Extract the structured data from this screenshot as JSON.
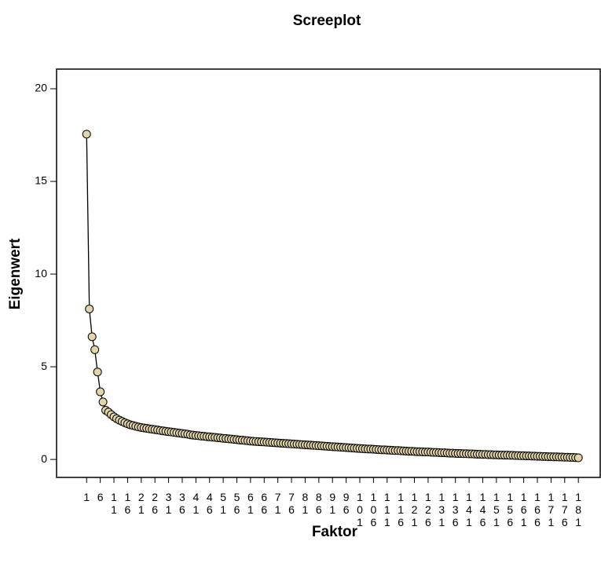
{
  "chart_data": {
    "type": "line",
    "title": "Screeplot",
    "x_label": "Faktor",
    "y_label": "Eigenwert",
    "x": [
      1,
      2,
      3,
      4,
      5,
      6,
      7,
      8,
      9,
      10,
      11,
      12,
      13,
      14,
      15,
      16,
      17,
      18,
      19,
      20,
      21,
      22,
      23,
      24,
      25,
      26,
      27,
      28,
      29,
      30,
      31,
      32,
      33,
      34,
      35,
      36,
      37,
      38,
      39,
      40,
      41,
      42,
      43,
      44,
      45,
      46,
      47,
      48,
      49,
      50,
      51,
      52,
      53,
      54,
      55,
      56,
      57,
      58,
      59,
      60,
      61,
      62,
      63,
      64,
      65,
      66,
      67,
      68,
      69,
      70,
      71,
      72,
      73,
      74,
      75,
      76,
      77,
      78,
      79,
      80,
      81,
      82,
      83,
      84,
      85,
      86,
      87,
      88,
      89,
      90,
      91,
      92,
      93,
      94,
      95,
      96,
      97,
      98,
      99,
      100,
      101,
      102,
      103,
      104,
      105,
      106,
      107,
      108,
      109,
      110,
      111,
      112,
      113,
      114,
      115,
      116,
      117,
      118,
      119,
      120,
      121,
      122,
      123,
      124,
      125,
      126,
      127,
      128,
      129,
      130,
      131,
      132,
      133,
      134,
      135,
      136,
      137,
      138,
      139,
      140,
      141,
      142,
      143,
      144,
      145,
      146,
      147,
      148,
      149,
      150,
      151,
      152,
      153,
      154,
      155,
      156,
      157,
      158,
      159,
      160,
      161,
      162,
      163,
      164,
      165,
      166,
      167,
      168,
      169,
      170,
      171,
      172,
      173,
      174,
      175,
      176,
      177,
      178,
      179,
      180,
      181
    ],
    "series": [
      {
        "name": "Eigenwert",
        "color": "#000000",
        "marker_color": "#e2d6a6",
        "values": [
          17.55,
          8.12,
          6.62,
          5.92,
          4.72,
          3.65,
          3.1,
          2.65,
          2.55,
          2.42,
          2.3,
          2.2,
          2.12,
          2.05,
          1.98,
          1.92,
          1.87,
          1.83,
          1.79,
          1.75,
          1.72,
          1.7,
          1.68,
          1.65,
          1.63,
          1.61,
          1.59,
          1.56,
          1.54,
          1.52,
          1.5,
          1.48,
          1.46,
          1.44,
          1.42,
          1.4,
          1.38,
          1.36,
          1.33,
          1.31,
          1.29,
          1.28,
          1.26,
          1.25,
          1.23,
          1.22,
          1.2,
          1.19,
          1.17,
          1.16,
          1.14,
          1.13,
          1.11,
          1.1,
          1.08,
          1.07,
          1.05,
          1.04,
          1.02,
          1.01,
          0.99,
          0.98,
          0.97,
          0.96,
          0.95,
          0.94,
          0.93,
          0.92,
          0.91,
          0.9,
          0.89,
          0.88,
          0.87,
          0.86,
          0.85,
          0.84,
          0.83,
          0.82,
          0.81,
          0.8,
          0.79,
          0.78,
          0.77,
          0.76,
          0.75,
          0.74,
          0.73,
          0.72,
          0.71,
          0.7,
          0.69,
          0.68,
          0.67,
          0.66,
          0.65,
          0.64,
          0.63,
          0.62,
          0.61,
          0.6,
          0.59,
          0.58,
          0.57,
          0.56,
          0.56,
          0.55,
          0.54,
          0.53,
          0.52,
          0.52,
          0.51,
          0.5,
          0.49,
          0.48,
          0.48,
          0.47,
          0.46,
          0.45,
          0.44,
          0.44,
          0.43,
          0.42,
          0.42,
          0.41,
          0.4,
          0.4,
          0.39,
          0.38,
          0.38,
          0.37,
          0.36,
          0.36,
          0.35,
          0.34,
          0.34,
          0.33,
          0.32,
          0.32,
          0.31,
          0.31,
          0.3,
          0.3,
          0.29,
          0.28,
          0.28,
          0.27,
          0.27,
          0.26,
          0.26,
          0.25,
          0.25,
          0.24,
          0.24,
          0.23,
          0.23,
          0.22,
          0.22,
          0.21,
          0.21,
          0.2,
          0.2,
          0.19,
          0.19,
          0.18,
          0.18,
          0.17,
          0.17,
          0.16,
          0.16,
          0.15,
          0.15,
          0.14,
          0.14,
          0.13,
          0.13,
          0.12,
          0.12,
          0.11,
          0.11,
          0.1,
          0.09
        ]
      }
    ],
    "xlim": [
      -10,
      189
    ],
    "xticks": [
      1,
      6,
      11,
      16,
      21,
      26,
      31,
      36,
      41,
      46,
      51,
      56,
      61,
      66,
      71,
      76,
      81,
      86,
      91,
      96,
      101,
      106,
      111,
      116,
      121,
      126,
      131,
      136,
      141,
      146,
      151,
      156,
      161,
      166,
      171,
      176,
      181
    ],
    "ylim": [
      -0.97,
      21.06
    ],
    "yticks": [
      0,
      5,
      10,
      15,
      20
    ]
  }
}
